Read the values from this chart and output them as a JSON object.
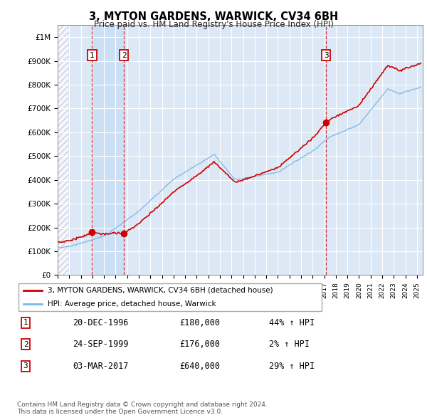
{
  "title": "3, MYTON GARDENS, WARWICK, CV34 6BH",
  "subtitle": "Price paid vs. HM Land Registry's House Price Index (HPI)",
  "ylim": [
    0,
    1050000
  ],
  "yticks": [
    0,
    100000,
    200000,
    300000,
    400000,
    500000,
    600000,
    700000,
    800000,
    900000,
    1000000
  ],
  "ytick_labels": [
    "£0",
    "£100K",
    "£200K",
    "£300K",
    "£400K",
    "£500K",
    "£600K",
    "£700K",
    "£800K",
    "£900K",
    "£1M"
  ],
  "xlim_start": 1994.0,
  "xlim_end": 2025.5,
  "sale_dates": [
    1996.97,
    1999.73,
    2017.17
  ],
  "sale_prices": [
    180000,
    176000,
    640000
  ],
  "sale_labels": [
    "1",
    "2",
    "3"
  ],
  "hpi_color": "#7ab8e8",
  "price_color": "#cc0000",
  "sale_dot_color": "#cc0000",
  "grid_color": "#c8d8e8",
  "legend_label_price": "3, MYTON GARDENS, WARWICK, CV34 6BH (detached house)",
  "legend_label_hpi": "HPI: Average price, detached house, Warwick",
  "table_rows": [
    [
      "1",
      "20-DEC-1996",
      "£180,000",
      "44% ↑ HPI"
    ],
    [
      "2",
      "24-SEP-1999",
      "£176,000",
      "2% ↑ HPI"
    ],
    [
      "3",
      "03-MAR-2017",
      "£640,000",
      "29% ↑ HPI"
    ]
  ],
  "footer": "Contains HM Land Registry data © Crown copyright and database right 2024.\nThis data is licensed under the Open Government Licence v3.0."
}
